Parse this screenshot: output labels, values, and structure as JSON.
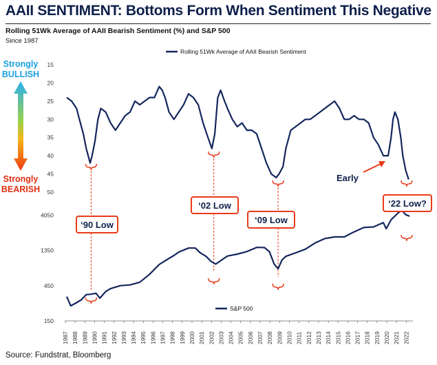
{
  "title": "AAII SENTIMENT: Bottoms Form When Sentiment This Negative",
  "subtitle": "Rolling 51Wk Average of AAII Bearish Sentiment (%) and S&P 500",
  "since": "Since 1987",
  "source": "Source: Fundstrat, Bloomberg",
  "scale": {
    "bullish_top": "Strongly",
    "bullish_bottom": "BULLISH",
    "bearish_top": "Strongly",
    "bearish_bottom": "BEARISH"
  },
  "colors": {
    "line": "#14255c",
    "accent": "#e83a1a",
    "title": "#0d1f4a"
  },
  "annotations": {
    "early": "Early",
    "callouts": [
      "‘90 Low",
      "‘02 Low",
      "‘09 Low",
      "‘22 Low?"
    ]
  },
  "chart_data": [
    {
      "type": "line",
      "series": [
        {
          "name": "Rolling 51Wk Average of AAII Bearish Sentiment",
          "inverted_axis": true,
          "x": [
            1987.5,
            1988.0,
            1988.5,
            1988.8,
            1989.2,
            1989.5,
            1989.9,
            1990.1,
            1990.4,
            1990.7,
            1991.0,
            1991.5,
            1992.0,
            1992.5,
            1993.0,
            1993.5,
            1994.0,
            1994.5,
            1995.0,
            1995.5,
            1996.0,
            1996.5,
            1997.0,
            1997.3,
            1997.6,
            1998.0,
            1998.5,
            1999.0,
            1999.5,
            2000.0,
            2000.5,
            2001.0,
            2001.5,
            2002.0,
            2002.4,
            2002.7,
            2003.0,
            2003.3,
            2003.7,
            2004.0,
            2004.5,
            2005.0,
            2005.5,
            2006.0,
            2006.5,
            2007.0,
            2007.5,
            2008.0,
            2008.5,
            2009.0,
            2009.3,
            2009.7,
            2010.0,
            2010.5,
            2011.0,
            2011.5,
            2012.0,
            2012.5,
            2013.0,
            2013.5,
            2014.0,
            2014.5,
            2015.0,
            2015.5,
            2016.0,
            2016.5,
            2017.0,
            2017.5,
            2018.0,
            2018.5,
            2019.0,
            2019.5,
            2020.0,
            2020.5,
            2020.8,
            2021.0,
            2021.2,
            2021.5,
            2021.8,
            2022.0,
            2022.3,
            2022.6
          ],
          "y": [
            24,
            25,
            27,
            30,
            34,
            38,
            42,
            40,
            36,
            30,
            27,
            28,
            31,
            33,
            31,
            29,
            28,
            25,
            26,
            25,
            24,
            24,
            21,
            22,
            24,
            28,
            30,
            28,
            26,
            23,
            24,
            26,
            31,
            35,
            38,
            34,
            24,
            22,
            25,
            27,
            30,
            32,
            31,
            33,
            33,
            34,
            38,
            42,
            45,
            46,
            45,
            43,
            38,
            33,
            32,
            31,
            30,
            30,
            29,
            28,
            27,
            26,
            25,
            27,
            30,
            30,
            29,
            30,
            30,
            31,
            35,
            37,
            40,
            40,
            35,
            30,
            28,
            30,
            35,
            40,
            44,
            46.5
          ]
        }
      ],
      "yticks": [
        15,
        20,
        25,
        30,
        35,
        40,
        45,
        50
      ],
      "ylim": [
        15,
        50
      ],
      "reversed": true
    },
    {
      "type": "line",
      "series": [
        {
          "name": "S&P 500",
          "x": [
            1987.5,
            1987.9,
            1988.5,
            1989.0,
            1989.5,
            1990.0,
            1990.5,
            1990.9,
            1991.5,
            1992.0,
            1993.0,
            1994.0,
            1995.0,
            1996.0,
            1997.0,
            1998.0,
            1998.5,
            1999.0,
            2000.0,
            2000.7,
            2001.2,
            2001.8,
            2002.3,
            2002.8,
            2003.3,
            2004.0,
            2005.0,
            2006.0,
            2007.0,
            2007.8,
            2008.3,
            2008.8,
            2009.2,
            2009.6,
            2010.0,
            2011.0,
            2012.0,
            2013.0,
            2014.0,
            2015.0,
            2016.0,
            2017.0,
            2018.0,
            2019.0,
            2020.0,
            2020.3,
            2020.8,
            2021.5,
            2021.9,
            2022.3,
            2022.7
          ],
          "y": [
            320,
            240,
            265,
            290,
            340,
            345,
            355,
            305,
            375,
            410,
            450,
            460,
            500,
            640,
            870,
            1050,
            1150,
            1280,
            1450,
            1450,
            1250,
            1120,
            960,
            880,
            980,
            1130,
            1200,
            1300,
            1480,
            1470,
            1300,
            880,
            760,
            1000,
            1120,
            1250,
            1400,
            1700,
            1950,
            2050,
            2050,
            2400,
            2750,
            2800,
            3200,
            2650,
            3500,
            4300,
            4700,
            4100,
            3900
          ]
        }
      ],
      "yticks": [
        150,
        450,
        1350,
        4050
      ],
      "ylim": [
        150,
        5500
      ],
      "scale": "log"
    }
  ],
  "x_years": [
    "1987",
    "1988",
    "1989",
    "1990",
    "1991",
    "1992",
    "1993",
    "1994",
    "1995",
    "1996",
    "1997",
    "1998",
    "1999",
    "2000",
    "2001",
    "2002",
    "2003",
    "2004",
    "2005",
    "2006",
    "2007",
    "2008",
    "2009",
    "2010",
    "2011",
    "2012",
    "2013",
    "2014",
    "2015",
    "2016",
    "2017",
    "2018",
    "2019",
    "2020",
    "2021",
    "2022"
  ],
  "x_range": [
    1987.5,
    2022.9
  ]
}
